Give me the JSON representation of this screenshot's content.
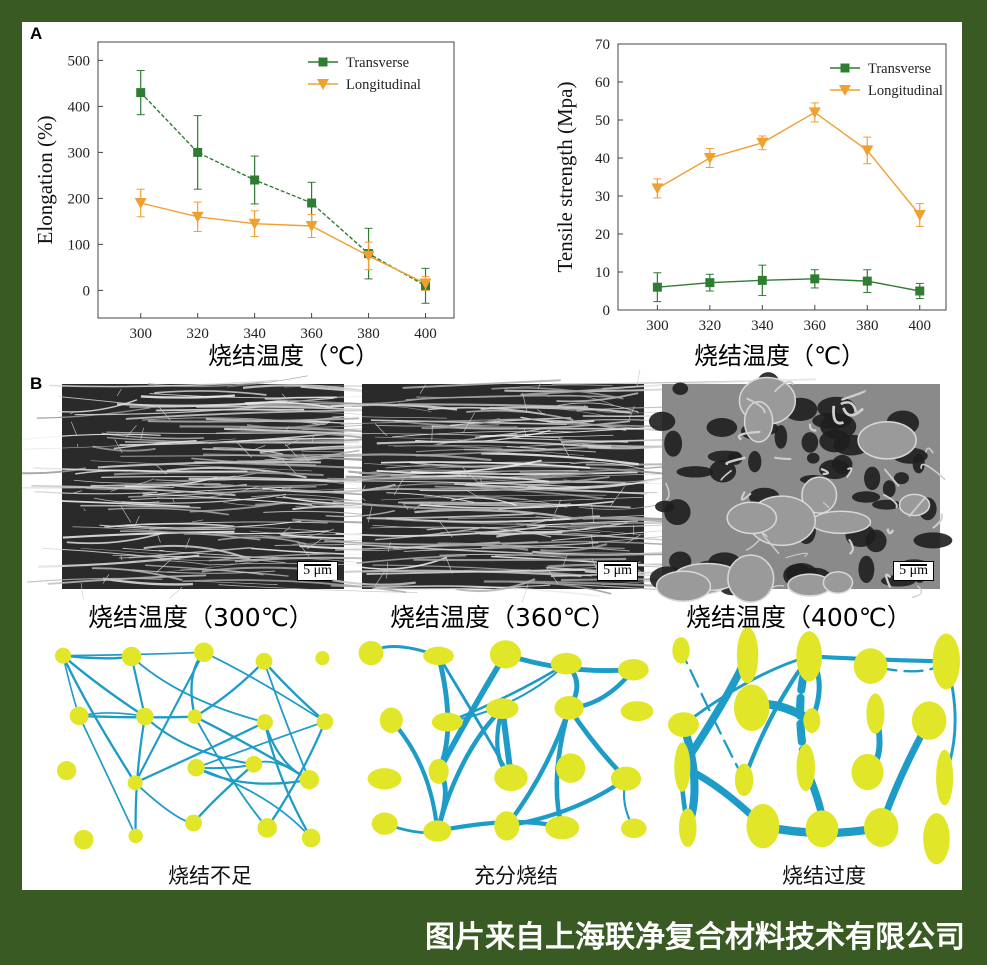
{
  "panel_labels": {
    "a": "A",
    "b": "B"
  },
  "chart_data": [
    {
      "type": "line",
      "ylabel": "Elongation (%)",
      "xlabel": "烧结温度（℃）",
      "x": [
        300,
        320,
        340,
        360,
        380,
        400
      ],
      "xlim": [
        285,
        410
      ],
      "ylim": [
        -60,
        540
      ],
      "yticks": [
        0,
        100,
        200,
        300,
        400,
        500
      ],
      "legend_position": "top-right",
      "series": [
        {
          "name": "Transverse",
          "values": [
            430,
            300,
            240,
            190,
            80,
            10
          ],
          "err": [
            48,
            80,
            52,
            45,
            55,
            38
          ],
          "color": "#2e7d32",
          "marker": "square"
        },
        {
          "name": "Longitudinal",
          "values": [
            190,
            160,
            145,
            140,
            75,
            15
          ],
          "err": [
            30,
            32,
            28,
            25,
            30,
            15
          ],
          "color": "#f0a030",
          "marker": "triangle-down"
        }
      ]
    },
    {
      "type": "line",
      "ylabel": "Tensile strength (Mpa)",
      "xlabel": "烧结温度（℃）",
      "x": [
        300,
        320,
        340,
        360,
        380,
        400
      ],
      "xlim": [
        285,
        410
      ],
      "ylim": [
        0,
        70
      ],
      "yticks": [
        0,
        10,
        20,
        30,
        40,
        50,
        60,
        70
      ],
      "legend_position": "top-right",
      "series": [
        {
          "name": "Transverse",
          "values": [
            6,
            7.2,
            7.8,
            8.2,
            7.6,
            5
          ],
          "err": [
            3.8,
            2.2,
            4,
            2.4,
            3,
            2
          ],
          "color": "#2e7d32",
          "marker": "square"
        },
        {
          "name": "Longitudinal",
          "values": [
            32,
            40,
            44,
            52,
            42,
            25
          ],
          "err": [
            2.5,
            2.5,
            1.8,
            2.5,
            3.5,
            3
          ],
          "color": "#f0a030",
          "marker": "triangle-down"
        }
      ]
    }
  ],
  "micrographs": [
    {
      "caption": "烧结温度（300℃）",
      "scale": "5 μm",
      "style": "dense-fibers"
    },
    {
      "caption": "烧结温度（360℃）",
      "scale": "5 μm",
      "style": "bright-fibers"
    },
    {
      "caption": "烧结温度（400℃）",
      "scale": "5 μm",
      "style": "merged-nodes"
    }
  ],
  "schematics": [
    {
      "caption": "烧结不足",
      "style": "under"
    },
    {
      "caption": "充分烧结",
      "style": "full"
    },
    {
      "caption": "烧结过度",
      "style": "over"
    }
  ],
  "colors": {
    "fiber": "#1e9cc8",
    "node": "#e2e628",
    "background": "#3a5a24"
  },
  "footer": "图片来自上海联净复合材料技术有限公司"
}
